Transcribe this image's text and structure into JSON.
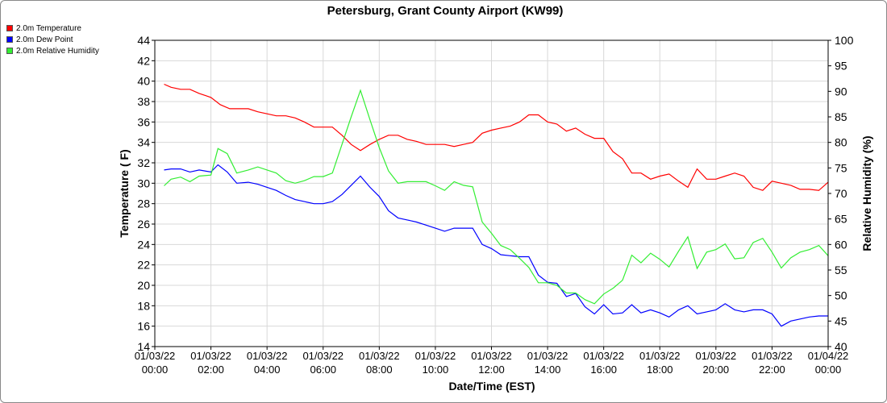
{
  "chart_data": {
    "type": "line",
    "title": "Petersburg, Grant County Airport (KW99)",
    "xlabel": "Date/Time (EST)",
    "ylabel": "Temperature ( F)",
    "y2label": "Relative Humidity (%)",
    "ylim": [
      14,
      44
    ],
    "y2lim": [
      40,
      100
    ],
    "xlim": [
      0,
      24
    ],
    "yticks": [
      14,
      16,
      18,
      20,
      22,
      24,
      26,
      28,
      30,
      32,
      34,
      36,
      38,
      40,
      42,
      44
    ],
    "y2ticks": [
      40,
      45,
      50,
      55,
      60,
      65,
      70,
      75,
      80,
      85,
      90,
      95,
      100
    ],
    "xticks": [
      {
        "value": 0,
        "date": "01/03/22",
        "time": "00:00"
      },
      {
        "value": 2,
        "date": "01/03/22",
        "time": "02:00"
      },
      {
        "value": 4,
        "date": "01/03/22",
        "time": "04:00"
      },
      {
        "value": 6,
        "date": "01/03/22",
        "time": "06:00"
      },
      {
        "value": 8,
        "date": "01/03/22",
        "time": "08:00"
      },
      {
        "value": 10,
        "date": "01/03/22",
        "time": "10:00"
      },
      {
        "value": 12,
        "date": "01/03/22",
        "time": "12:00"
      },
      {
        "value": 14,
        "date": "01/03/22",
        "time": "14:00"
      },
      {
        "value": 16,
        "date": "01/03/22",
        "time": "16:00"
      },
      {
        "value": 18,
        "date": "01/03/22",
        "time": "18:00"
      },
      {
        "value": 20,
        "date": "01/03/22",
        "time": "20:00"
      },
      {
        "value": 22,
        "date": "01/03/22",
        "time": "22:00"
      },
      {
        "value": 24,
        "date": "01/04/22",
        "time": "00:00"
      }
    ],
    "grid": true,
    "legend_position": "top-left",
    "series": [
      {
        "name": "2.0m Temperature",
        "color": "#ff0000",
        "axis": "left",
        "x": [
          0.33,
          0.58,
          0.92,
          1.25,
          1.58,
          2.0,
          2.33,
          2.67,
          3.0,
          3.33,
          3.67,
          4.0,
          4.33,
          4.67,
          5.0,
          5.33,
          5.67,
          6.0,
          6.33,
          6.67,
          7.0,
          7.33,
          7.67,
          8.0,
          8.33,
          8.67,
          9.0,
          9.33,
          9.67,
          10.0,
          10.33,
          10.67,
          11.0,
          11.33,
          11.67,
          12.0,
          12.33,
          12.67,
          13.0,
          13.33,
          13.67,
          14.0,
          14.33,
          14.67,
          15.0,
          15.33,
          15.67,
          16.0,
          16.33,
          16.67,
          17.0,
          17.33,
          17.67,
          18.0,
          18.33,
          18.67,
          19.0,
          19.33,
          19.67,
          20.0,
          20.33,
          20.67,
          21.0,
          21.33,
          21.67,
          22.0,
          22.33,
          22.67,
          23.0,
          23.33,
          23.67,
          24.0
        ],
        "y": [
          39.7,
          39.4,
          39.2,
          39.2,
          38.8,
          38.4,
          37.7,
          37.3,
          37.3,
          37.3,
          37.0,
          36.8,
          36.6,
          36.6,
          36.4,
          36.0,
          35.5,
          35.5,
          35.5,
          34.7,
          33.8,
          33.2,
          33.8,
          34.3,
          34.7,
          34.7,
          34.3,
          34.1,
          33.8,
          33.8,
          33.8,
          33.6,
          33.8,
          34.0,
          34.9,
          35.2,
          35.4,
          35.6,
          36.0,
          36.7,
          36.7,
          36.0,
          35.8,
          35.1,
          35.4,
          34.8,
          34.4,
          34.4,
          33.1,
          32.4,
          31.0,
          31.0,
          30.4,
          30.7,
          30.9,
          30.2,
          29.6,
          31.4,
          30.4,
          30.4,
          30.7,
          31.0,
          30.7,
          29.6,
          29.3,
          30.2,
          30.0,
          29.8,
          29.4,
          29.4,
          29.3,
          30.1
        ]
      },
      {
        "name": "2.0m Dew Point",
        "color": "#0000ff",
        "axis": "left",
        "x": [
          0.33,
          0.58,
          0.92,
          1.25,
          1.58,
          2.0,
          2.25,
          2.58,
          2.92,
          3.33,
          3.67,
          4.0,
          4.33,
          4.67,
          5.0,
          5.33,
          5.67,
          6.0,
          6.33,
          6.67,
          7.0,
          7.33,
          7.67,
          8.0,
          8.33,
          8.67,
          9.0,
          9.33,
          9.67,
          10.0,
          10.33,
          10.67,
          11.0,
          11.33,
          11.67,
          12.0,
          12.33,
          12.67,
          13.0,
          13.33,
          13.67,
          14.0,
          14.33,
          14.67,
          15.0,
          15.33,
          15.67,
          16.0,
          16.33,
          16.67,
          17.0,
          17.33,
          17.67,
          18.0,
          18.33,
          18.67,
          19.0,
          19.33,
          19.67,
          20.0,
          20.33,
          20.67,
          21.0,
          21.33,
          21.67,
          22.0,
          22.33,
          22.67,
          23.0,
          23.33,
          23.67,
          24.0
        ],
        "y": [
          31.3,
          31.4,
          31.4,
          31.1,
          31.3,
          31.1,
          31.8,
          31.1,
          30.0,
          30.1,
          29.9,
          29.6,
          29.3,
          28.8,
          28.4,
          28.2,
          28.0,
          28.0,
          28.2,
          28.9,
          29.8,
          30.7,
          29.6,
          28.7,
          27.3,
          26.6,
          26.4,
          26.2,
          25.9,
          25.6,
          25.3,
          25.6,
          25.6,
          25.6,
          24.0,
          23.6,
          23.0,
          22.9,
          22.8,
          22.8,
          21.0,
          20.3,
          20.2,
          18.9,
          19.2,
          17.9,
          17.2,
          18.1,
          17.2,
          17.3,
          18.1,
          17.3,
          17.6,
          17.3,
          16.9,
          17.6,
          18.0,
          17.2,
          17.4,
          17.6,
          18.2,
          17.6,
          17.4,
          17.6,
          17.6,
          17.2,
          16.0,
          16.5,
          16.7,
          16.9,
          17.0,
          17.0
        ]
      },
      {
        "name": "2.0m Relative Humidity",
        "color": "#33ee33",
        "axis": "right",
        "x": [
          0.33,
          0.58,
          0.92,
          1.25,
          1.58,
          2.0,
          2.25,
          2.58,
          2.92,
          3.33,
          3.67,
          4.0,
          4.33,
          4.67,
          5.0,
          5.33,
          5.67,
          6.0,
          6.33,
          6.67,
          7.0,
          7.33,
          7.67,
          8.0,
          8.33,
          8.67,
          9.0,
          9.33,
          9.67,
          10.0,
          10.33,
          10.67,
          11.0,
          11.33,
          11.67,
          12.0,
          12.33,
          12.67,
          13.0,
          13.33,
          13.67,
          14.0,
          14.33,
          14.67,
          15.0,
          15.33,
          15.67,
          16.0,
          16.33,
          16.67,
          17.0,
          17.33,
          17.67,
          18.0,
          18.33,
          18.67,
          19.0,
          19.33,
          19.67,
          20.0,
          20.33,
          20.67,
          21.0,
          21.33,
          21.67,
          22.0,
          22.33,
          22.67,
          23.0,
          23.33,
          23.67,
          24.0
        ],
        "y": [
          71.5,
          72.8,
          73.2,
          72.3,
          73.4,
          73.6,
          78.8,
          77.8,
          74.0,
          74.6,
          75.2,
          74.6,
          74.0,
          72.5,
          72.0,
          72.5,
          73.3,
          73.3,
          74.0,
          79.6,
          85.0,
          90.2,
          84.4,
          79.0,
          74.4,
          72.0,
          72.3,
          72.3,
          72.3,
          71.5,
          70.6,
          72.3,
          71.6,
          71.3,
          64.4,
          62.2,
          59.8,
          59.0,
          57.3,
          55.5,
          52.5,
          52.5,
          52.0,
          50.5,
          50.5,
          49.2,
          48.4,
          50.3,
          51.4,
          53.0,
          57.9,
          56.4,
          58.3,
          57.1,
          55.6,
          58.7,
          61.5,
          55.3,
          58.5,
          59.0,
          60.1,
          57.2,
          57.4,
          60.4,
          61.2,
          58.5,
          55.4,
          57.4,
          58.5,
          59.0,
          59.8,
          57.8
        ]
      }
    ]
  }
}
